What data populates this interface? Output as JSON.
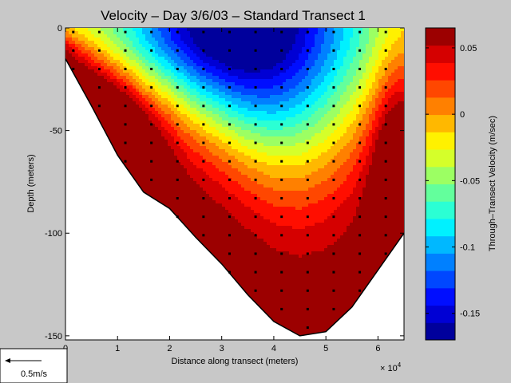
{
  "chart_data": {
    "type": "heatmap",
    "title": "Velocity – Day 3/6/03 – Standard Transect 1",
    "xlabel": "Distance along transect (meters)",
    "x_exponent_label": "× 10",
    "x_exponent_power": "4",
    "ylabel": "Depth (meters)",
    "xlim": [
      0,
      65000
    ],
    "ylim": [
      -152,
      0
    ],
    "x_ticks": [
      0,
      10000,
      20000,
      30000,
      40000,
      50000,
      60000
    ],
    "x_tick_labels": [
      "0",
      "1",
      "2",
      "3",
      "4",
      "5",
      "6"
    ],
    "y_ticks": [
      0,
      -50,
      -100,
      -150
    ],
    "y_tick_labels": [
      "0",
      "-50",
      "-100",
      "-150"
    ],
    "colorbar": {
      "label": "Through–Transect Velocity (m/sec)",
      "range": [
        -0.17,
        0.065
      ],
      "ticks": [
        0.05,
        0,
        -0.05,
        -0.1,
        -0.15
      ],
      "tick_labels": [
        "0.05",
        "0",
        "-0.05",
        "-0.1",
        "-0.15"
      ]
    },
    "bottom_profile": [
      [
        0,
        -15
      ],
      [
        5000,
        -38
      ],
      [
        10000,
        -62
      ],
      [
        15000,
        -80
      ],
      [
        20000,
        -88
      ],
      [
        25000,
        -102
      ],
      [
        30000,
        -115
      ],
      [
        35000,
        -130
      ],
      [
        40000,
        -143
      ],
      [
        45000,
        -150
      ],
      [
        50000,
        -148
      ],
      [
        55000,
        -136
      ],
      [
        60000,
        -118
      ],
      [
        65000,
        -100
      ]
    ],
    "scale_arrow": {
      "label": "0.5m/s",
      "value": 0.5
    },
    "grid": false
  }
}
